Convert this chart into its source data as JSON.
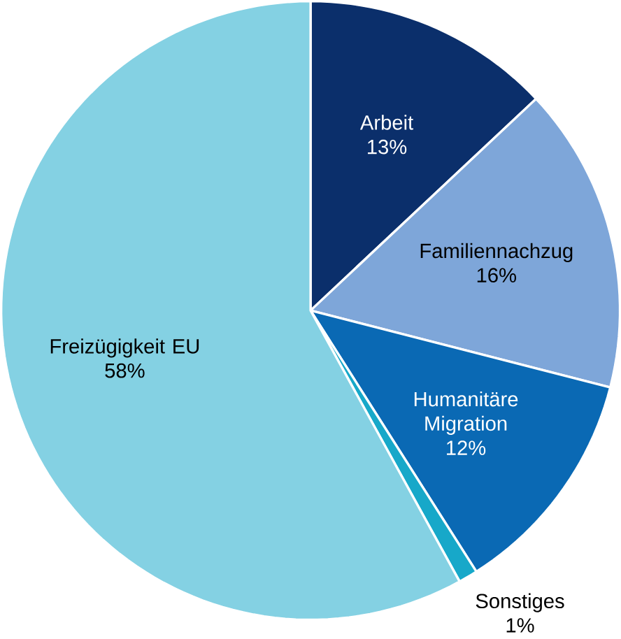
{
  "chart_data": {
    "type": "pie",
    "categories": [
      "Arbeit",
      "Familiennachzug",
      "Humanitäre Migration",
      "Sonstiges",
      "Freizügigkeit EU"
    ],
    "values": [
      13,
      16,
      12,
      1,
      58
    ],
    "value_labels": [
      "13%",
      "16%",
      "12%",
      "1%",
      "58%"
    ],
    "colors": [
      "#0b2f6b",
      "#7ea6d9",
      "#0a69b4",
      "#17a8c9",
      "#84d1e3"
    ]
  }
}
